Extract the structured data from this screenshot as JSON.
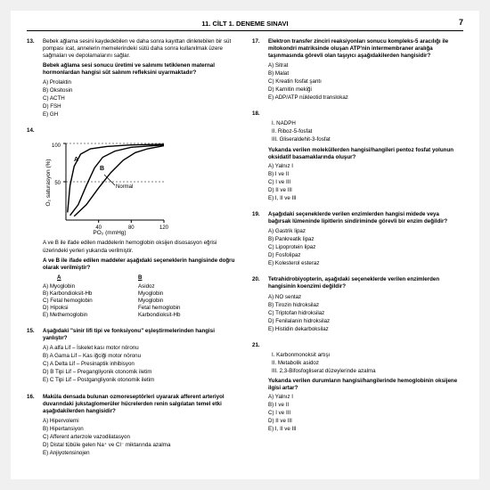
{
  "header": {
    "title": "11. CİLT 1. DENEME SINAVI",
    "page": "7"
  },
  "q13": {
    "num": "13.",
    "p1": "Bebek ağlama sesini kaydedebilen ve daha sonra kayıttan dinletebilen bir süt pompası icat, annelerin memelerindeki sütü daha sonra kullanılmak üzere sağmaları ve depolamalarını sağlar.",
    "p2": "Bebek ağlama sesi sonucu üretimi ve salınımı tetiklenen maternal hormonlardan hangisi süt salınım refleksini uyarmaktadır?",
    "A": "A) Prolaktin",
    "B": "B) Oksitosin",
    "C": "C) ACTH",
    "D": "D) FSH",
    "E": "E) GH"
  },
  "q14": {
    "num": "14.",
    "chart": {
      "type": "line",
      "xlabel": "PO₂ (mmHg)",
      "ylabel": "O₂ saturasyon (%)",
      "xlim": [
        0,
        120
      ],
      "ylim": [
        0,
        100
      ],
      "xticks": [
        0,
        40,
        80,
        120
      ],
      "yticks": [
        50,
        100
      ],
      "curves": {
        "A": {
          "color": "#000000",
          "points": [
            [
              2,
              10
            ],
            [
              5,
              45
            ],
            [
              10,
              70
            ],
            [
              18,
              86
            ],
            [
              30,
              93
            ],
            [
              50,
              96
            ],
            [
              80,
              98
            ],
            [
              120,
              99
            ]
          ]
        },
        "Normal": {
          "color": "#000000",
          "points": [
            [
              5,
              6
            ],
            [
              15,
              20
            ],
            [
              25,
              45
            ],
            [
              35,
              68
            ],
            [
              45,
              82
            ],
            [
              60,
              90
            ],
            [
              80,
              95
            ],
            [
              120,
              98
            ]
          ]
        },
        "B": {
          "color": "#000000",
          "points": [
            [
              10,
              5
            ],
            [
              25,
              20
            ],
            [
              40,
              42
            ],
            [
              55,
              62
            ],
            [
              70,
              78
            ],
            [
              85,
              88
            ],
            [
              100,
              93
            ],
            [
              120,
              97
            ]
          ]
        }
      },
      "background": "#ffffff",
      "axis_color": "#000000",
      "line_width": 1.4
    },
    "cap1": "A ve B ile ifade edilen maddelerin hemoglobin oksijen disosasyon eğrisi üzerindeki yerleri yukarıda verilmiştir.",
    "cap2": "A ve B ile ifade edilen maddeler aşağıdaki seçeneklerin hangisinde doğru olarak verilmiştir?",
    "hA": "A",
    "hB": "B",
    "rA": [
      "A)  Myoglobin",
      "Asidoz"
    ],
    "rB": [
      "B)  Karbondioksit-Hb",
      "Myoglobin"
    ],
    "rC": [
      "C)  Fetal hemoglobin",
      "Myoglobin"
    ],
    "rD": [
      "D)  Hipoksi",
      "Fetal hemoglobin"
    ],
    "rE": [
      "E)  Methemoglobin",
      "Karbondioksit-Hb"
    ]
  },
  "q15": {
    "num": "15.",
    "stem": "Aşağıdaki \"sinir lifi tipi ve fonksiyonu\" eşleştirmelerinden hangisi yanlıştır?",
    "A": "A) A alfa Lif – İskelet kası motor nöronu",
    "B": "B) A Gama Lif – Kas iğciği motor nöronu",
    "C": "C) A Delta Lif – Presinaptik inhibisyon",
    "D": "D) B Tipi Lif – Pregangliyonik otonomik iletim",
    "E": "E) C Tipi Lif – Postgangliyonik otonomik iletim"
  },
  "q16": {
    "num": "16.",
    "stem": "Makûla densada bulunan ozmoreseptörleri uyararak afferent arteriyol duvarındaki jukstaglomerüler hücrelerden renin salgılatan temel etki aşağıdakilerden hangisidir?",
    "A": "A) Hipervolemi",
    "B": "B) Hipertansiyon",
    "C": "C) Afferent arterzole vazodilatasyon",
    "D": "D) Distal tübüle gelen Na⁺ ve Cl⁻ miktarında azalma",
    "E": "E) Anjiyotensinojen"
  },
  "q17": {
    "num": "17.",
    "stem": "Elektron transfer zinciri reaksiyonları sonucu kompleks-5 aracılığı ile mitokondri matriksinde oluşan ATP'nin intermembraner aralığa taşınmasında görevli olan taşıyıcı aşağıdakilerden hangisidir?",
    "A": "A) Sitrat",
    "B": "B) Malat",
    "C": "C) Kreatin fosfat şantı",
    "D": "D) Karnitin mekiği",
    "E": "E) ADP/ATP nükleotid translokaz"
  },
  "q18": {
    "num": "18.",
    "s1": "I.    NADPH",
    "s2": "II.   Riboz-5-fosfat",
    "s3": "III.  Gliseraldehit-3-fosfat",
    "stem": "Yukarıda verilen moleküllerden hangisi/hangileri pentoz fosfat yolunun oksidatif basamaklarında oluşur?",
    "A": "A) Yalnız I",
    "B": "B) I ve II",
    "C": "C) I ve III",
    "D": "D) II ve III",
    "E": "E) I, II ve III"
  },
  "q19": {
    "num": "19.",
    "stem": "Aşağıdaki seçeneklerde verilen enzimlerden hangisi midede veya bağırsak lümeninde lipitlerin sindiriminde görevli bir enzim değildir?",
    "A": "A) Gastrik lipaz",
    "B": "B) Pankreatik lipaz",
    "C": "C) Lipoprotein lipaz",
    "D": "D) Fosfolipaz",
    "E": "E) Kolesterol esteraz"
  },
  "q20": {
    "num": "20.",
    "stem": "Tetrahidrobiyopterin, aşağıdaki seçeneklerde verilen enzimlerden hangisinin koenzimi değildir?",
    "A": "A) NO sentaz",
    "B": "B) Tirozin hidroksilaz",
    "C": "C) Triptofan hidroksilaz",
    "D": "D) Fenilalanin hidroksilaz",
    "E": "E) Histidin dekarboksilaz"
  },
  "q21": {
    "num": "21.",
    "s1": "I.    Karbonmonoksit artışı",
    "s2": "II.   Metabolik asidoz",
    "s3": "III.  2,3-Bifosfogliserat düzeylerinde azalma",
    "stem": "Yukarıda verilen durumların hangisi/hangilerinde hemoglobinin oksijene ilgisi artar?",
    "A": "A) Yalnız I",
    "B": "B) I ve II",
    "C": "C) I ve III",
    "D": "D) II ve III",
    "E": "E) I, II ve III"
  }
}
